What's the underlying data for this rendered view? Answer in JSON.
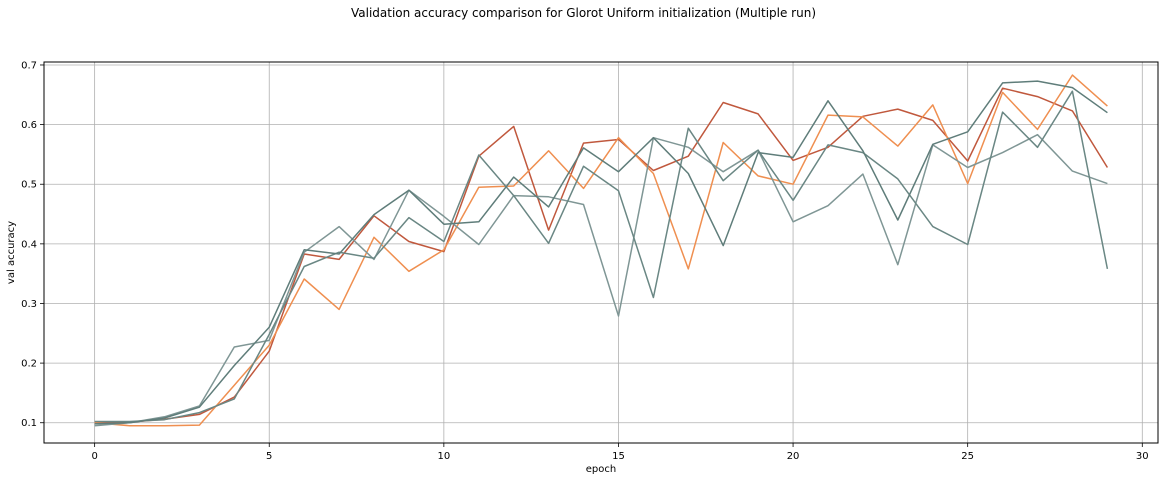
{
  "chart_data": {
    "type": "line",
    "title": "Validation accuracy comparison for Glorot Uniform initialization (Multiple run)",
    "xlabel": "epoch",
    "ylabel": "val accuracy",
    "xlim": [
      -1.45,
      30.45
    ],
    "ylim": [
      0.066,
      0.705
    ],
    "xticks": [
      0,
      5,
      10,
      15,
      20,
      25,
      30
    ],
    "yticks": [
      0.1,
      0.2,
      0.3,
      0.4,
      0.5,
      0.6,
      0.7
    ],
    "grid": true,
    "x": [
      0,
      1,
      2,
      3,
      4,
      5,
      6,
      7,
      8,
      9,
      10,
      11,
      12,
      13,
      14,
      15,
      16,
      17,
      18,
      19,
      20,
      21,
      22,
      23,
      24,
      25,
      26,
      27,
      28,
      29
    ],
    "series": [
      {
        "color": "#c0583d",
        "values": [
          0.101,
          0.101,
          0.106,
          0.114,
          0.143,
          0.22,
          0.383,
          0.374,
          0.447,
          0.404,
          0.387,
          0.547,
          0.597,
          0.423,
          0.569,
          0.575,
          0.523,
          0.547,
          0.637,
          0.618,
          0.54,
          0.562,
          0.614,
          0.626,
          0.607,
          0.539,
          0.661,
          0.647,
          0.623,
          0.528
        ]
      },
      {
        "color": "#ef8f50",
        "values": [
          0.1,
          0.095,
          0.095,
          0.096,
          0.163,
          0.23,
          0.341,
          0.29,
          0.411,
          0.354,
          0.39,
          0.495,
          0.497,
          0.556,
          0.493,
          0.578,
          0.518,
          0.358,
          0.57,
          0.514,
          0.5,
          0.616,
          0.613,
          0.564,
          0.633,
          0.501,
          0.654,
          0.592,
          0.683,
          0.631
        ]
      },
      {
        "color": "#7f9695",
        "values": [
          0.095,
          0.1,
          0.11,
          0.128,
          0.227,
          0.238,
          0.386,
          0.429,
          0.374,
          0.49,
          0.446,
          0.399,
          0.481,
          0.479,
          0.466,
          0.279,
          0.578,
          0.562,
          0.521,
          0.557,
          0.437,
          0.464,
          0.517,
          0.365,
          0.566,
          0.528,
          0.553,
          0.583,
          0.522,
          0.501
        ]
      },
      {
        "color": "#6a8784",
        "values": [
          0.102,
          0.102,
          0.105,
          0.117,
          0.14,
          0.248,
          0.362,
          0.386,
          0.376,
          0.444,
          0.404,
          0.549,
          0.481,
          0.401,
          0.53,
          0.489,
          0.31,
          0.594,
          0.506,
          0.557,
          0.473,
          0.566,
          0.553,
          0.509,
          0.429,
          0.399,
          0.621,
          0.562,
          0.656,
          0.358
        ]
      },
      {
        "color": "#5f7d7a",
        "values": [
          0.098,
          0.1,
          0.108,
          0.126,
          0.196,
          0.26,
          0.39,
          0.383,
          0.449,
          0.49,
          0.433,
          0.437,
          0.512,
          0.462,
          0.561,
          0.521,
          0.578,
          0.518,
          0.397,
          0.553,
          0.545,
          0.64,
          0.556,
          0.44,
          0.567,
          0.588,
          0.67,
          0.673,
          0.662,
          0.62
        ]
      }
    ]
  }
}
